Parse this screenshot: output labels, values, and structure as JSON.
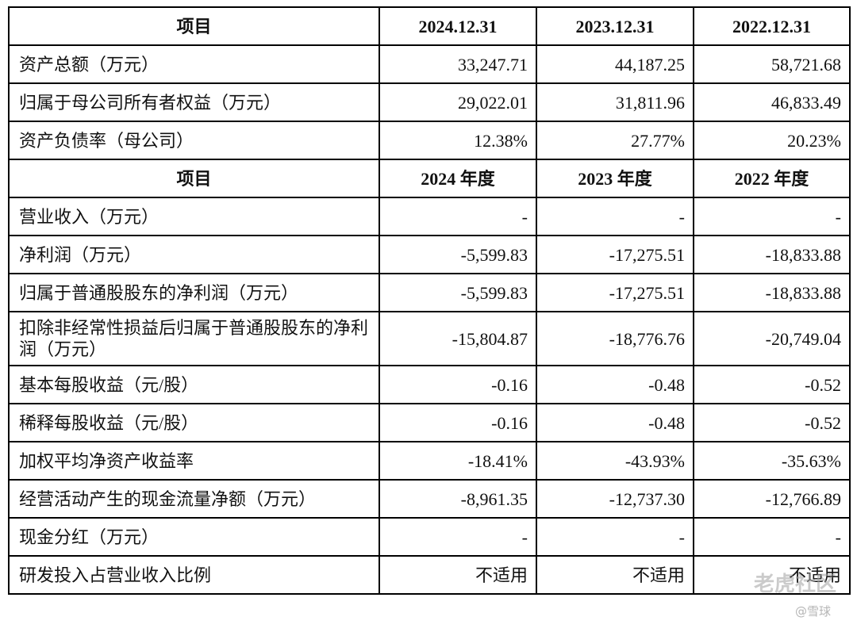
{
  "table": {
    "sections": [
      {
        "header": [
          "项目",
          "2024.12.31",
          "2023.12.31",
          "2022.12.31"
        ],
        "rows": [
          [
            "资产总额（万元）",
            "33,247.71",
            "44,187.25",
            "58,721.68"
          ],
          [
            "归属于母公司所有者权益（万元）",
            "29,022.01",
            "31,811.96",
            "46,833.49"
          ],
          [
            "资产负债率（母公司）",
            "12.38%",
            "27.77%",
            "20.23%"
          ]
        ]
      },
      {
        "header": [
          "项目",
          "2024 年度",
          "2023 年度",
          "2022 年度"
        ],
        "rows": [
          [
            "营业收入（万元）",
            "-",
            "-",
            "-"
          ],
          [
            "净利润（万元）",
            "-5,599.83",
            "-17,275.51",
            "-18,833.88"
          ],
          [
            "归属于普通股股东的净利润（万元）",
            "-5,599.83",
            "-17,275.51",
            "-18,833.88"
          ],
          [
            "扣除非经常性损益后归属于普通股股东的净利润（万元）",
            "-15,804.87",
            "-18,776.76",
            "-20,749.04"
          ],
          [
            "基本每股收益（元/股）",
            "-0.16",
            "-0.48",
            "-0.52"
          ],
          [
            "稀释每股收益（元/股）",
            "-0.16",
            "-0.48",
            "-0.52"
          ],
          [
            "加权平均净资产收益率",
            "-18.41%",
            "-43.93%",
            "-35.63%"
          ],
          [
            "经营活动产生的现金流量净额（万元）",
            "-8,961.35",
            "-12,737.30",
            "-12,766.89"
          ],
          [
            "现金分红（万元）",
            "-",
            "-",
            "-"
          ],
          [
            "研发投入占营业收入比例",
            "不适用",
            "不适用",
            "不适用"
          ]
        ]
      }
    ]
  },
  "watermark": {
    "brand": "老虎社区",
    "handle": "@雪球"
  }
}
